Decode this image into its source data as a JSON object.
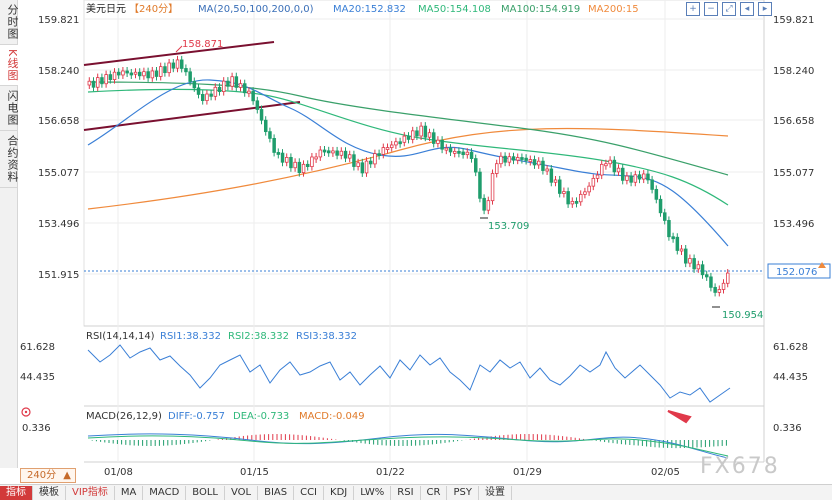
{
  "left_tabs": [
    {
      "label": "分时图",
      "active": false
    },
    {
      "label": "K线图",
      "active": true
    },
    {
      "label": "闪电图",
      "active": false
    },
    {
      "label": "合约资料",
      "active": false
    }
  ],
  "header": {
    "symbol": "美元日元",
    "period_tag": "【240分】",
    "ma_params": "MA(20,50,100,200,0,0)",
    "ma20": "MA20:152.832",
    "ma50": "MA50:154.108",
    "ma100": "MA100:154.919",
    "ma200": "MA200:15"
  },
  "y_axis_labels": [
    "159.821",
    "158.240",
    "156.658",
    "155.077",
    "153.496",
    "151.915"
  ],
  "current_price": "152.076",
  "annotations": {
    "high": "158.871",
    "mid_low": "153.709",
    "low": "150.954"
  },
  "rsi": {
    "params": "RSI(14,14,14)",
    "rsi1": "RSI1:38.332",
    "rsi2": "RSI2:38.332",
    "rsi3": "RSI3:38.332",
    "axis": [
      "61.628",
      "44.435"
    ]
  },
  "macd": {
    "params": "MACD(26,12,9)",
    "diff": "DIFF:-0.757",
    "dea": "DEA:-0.733",
    "macd": "MACD:-0.049",
    "axis": "0.336"
  },
  "x_dates": [
    "01/08",
    "01/15",
    "01/22",
    "01/29",
    "02/05"
  ],
  "period_select": "240分",
  "toolbar": [
    "指标",
    "模板",
    "VIP指标",
    "MA",
    "MACD",
    "BOLL",
    "VOL",
    "BIAS",
    "CCI",
    "KDJ",
    "LW%",
    "RSI",
    "CR",
    "PSY",
    "设置"
  ],
  "watermark": "FX678",
  "colors": {
    "up": "#e0394a",
    "down": "#1f9d6c",
    "ma20": "#3a7fd6",
    "ma50": "#2fb87a",
    "ma100": "#3aa06a",
    "ma200": "#f08a3c",
    "channel": "#7a1030"
  }
}
